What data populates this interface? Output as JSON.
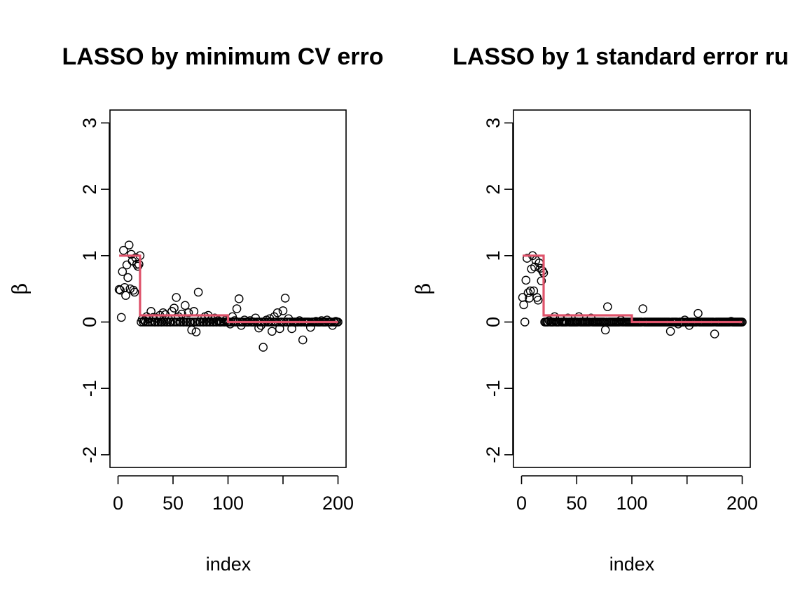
{
  "chart_data": [
    {
      "type": "scatter",
      "title": "LASSO by minimum CV erro",
      "xlabel": "index",
      "ylabel": "β",
      "xlim": [
        0,
        200
      ],
      "ylim": [
        -2,
        3
      ],
      "x_ticks": [
        "0",
        "50",
        "100",
        "200"
      ],
      "x_tick_values": [
        0,
        50,
        100,
        200
      ],
      "y_ticks": [
        "-2",
        "-1",
        "0",
        "1",
        "2",
        "3"
      ],
      "y_tick_values": [
        -2,
        -1,
        0,
        1,
        2,
        3
      ],
      "x_axis_ticks": [
        0,
        50,
        100,
        150,
        200
      ],
      "grid": false,
      "true_beta_color": "#DF536B",
      "true_beta": [
        {
          "from": 1,
          "to": 20,
          "value": 1
        },
        {
          "from": 21,
          "to": 100,
          "value": 0.1
        },
        {
          "from": 101,
          "to": 200,
          "value": 0
        }
      ],
      "points": [
        [
          1,
          0.49
        ],
        [
          2,
          0.48
        ],
        [
          3,
          0.07
        ],
        [
          4,
          0.76
        ],
        [
          5,
          1.08
        ],
        [
          6,
          0.52
        ],
        [
          7,
          0.4
        ],
        [
          8,
          0.86
        ],
        [
          9,
          0.67
        ],
        [
          10,
          1.16
        ],
        [
          11,
          0.5
        ],
        [
          12,
          1.02
        ],
        [
          13,
          0.92
        ],
        [
          14,
          0.48
        ],
        [
          15,
          0.45
        ],
        [
          16,
          0.97
        ],
        [
          17,
          0.87
        ],
        [
          18,
          0.84
        ],
        [
          19,
          0.87
        ],
        [
          20,
          1.0
        ],
        [
          21,
          0.0
        ],
        [
          22,
          0.04
        ],
        [
          24,
          0.02
        ],
        [
          26,
          0.08
        ],
        [
          28,
          0.05
        ],
        [
          30,
          0.16
        ],
        [
          32,
          0.07
        ],
        [
          35,
          0.06
        ],
        [
          38,
          0.1
        ],
        [
          41,
          0.14
        ],
        [
          43,
          0.11
        ],
        [
          46,
          0.04
        ],
        [
          49,
          0.16
        ],
        [
          51,
          0.21
        ],
        [
          53,
          0.37
        ],
        [
          55,
          0.08
        ],
        [
          58,
          0.12
        ],
        [
          61,
          0.25
        ],
        [
          64,
          0.14
        ],
        [
          67,
          -0.12
        ],
        [
          69,
          0.16
        ],
        [
          71,
          -0.15
        ],
        [
          73,
          0.45
        ],
        [
          76,
          0.05
        ],
        [
          79,
          0.08
        ],
        [
          82,
          0.1
        ],
        [
          85,
          0.04
        ],
        [
          88,
          0.06
        ],
        [
          91,
          0.02
        ],
        [
          95,
          0.05
        ],
        [
          98,
          0.03
        ],
        [
          102,
          -0.03
        ],
        [
          104,
          0.08
        ],
        [
          106,
          0.02
        ],
        [
          108,
          0.2
        ],
        [
          110,
          0.35
        ],
        [
          112,
          -0.05
        ],
        [
          115,
          0.03
        ],
        [
          120,
          0.02
        ],
        [
          125,
          0.06
        ],
        [
          128,
          -0.09
        ],
        [
          130,
          -0.05
        ],
        [
          132,
          -0.38
        ],
        [
          135,
          0.03
        ],
        [
          138,
          0.05
        ],
        [
          140,
          -0.14
        ],
        [
          142,
          0.08
        ],
        [
          145,
          0.14
        ],
        [
          147,
          -0.1
        ],
        [
          150,
          0.17
        ],
        [
          152,
          0.36
        ],
        [
          155,
          0.05
        ],
        [
          158,
          -0.1
        ],
        [
          165,
          0.02
        ],
        [
          168,
          -0.27
        ],
        [
          175,
          -0.08
        ],
        [
          180,
          0.01
        ],
        [
          185,
          0.02
        ],
        [
          190,
          0.03
        ],
        [
          195,
          -0.05
        ],
        [
          198,
          0.01
        ],
        [
          200,
          0.0
        ]
      ],
      "zero_points_x": [
        23,
        25,
        27,
        29,
        31,
        33,
        34,
        36,
        37,
        39,
        40,
        42,
        44,
        45,
        47,
        48,
        50,
        52,
        54,
        56,
        57,
        59,
        60,
        62,
        63,
        65,
        66,
        68,
        70,
        72,
        74,
        75,
        77,
        78,
        80,
        81,
        83,
        84,
        86,
        87,
        89,
        90,
        92,
        93,
        94,
        96,
        97,
        99,
        100,
        101,
        103,
        105,
        107,
        109,
        111,
        113,
        114,
        116,
        117,
        118,
        119,
        121,
        122,
        123,
        124,
        126,
        127,
        129,
        131,
        133,
        134,
        136,
        137,
        139,
        141,
        143,
        144,
        146,
        148,
        149,
        151,
        153,
        154,
        156,
        157,
        159,
        160,
        161,
        162,
        163,
        164,
        166,
        167,
        169,
        170,
        171,
        172,
        173,
        174,
        176,
        177,
        178,
        179,
        181,
        182,
        183,
        184,
        186,
        187,
        188,
        189,
        191,
        192,
        193,
        194,
        196,
        197,
        199
      ]
    },
    {
      "type": "scatter",
      "title": "LASSO by 1 standard error ru",
      "xlabel": "index",
      "ylabel": "β",
      "xlim": [
        0,
        200
      ],
      "ylim": [
        -2,
        3
      ],
      "x_ticks": [
        "0",
        "50",
        "100",
        "200"
      ],
      "x_tick_values": [
        0,
        50,
        100,
        200
      ],
      "y_ticks": [
        "-2",
        "-1",
        "0",
        "1",
        "2",
        "3"
      ],
      "y_tick_values": [
        -2,
        -1,
        0,
        1,
        2,
        3
      ],
      "x_axis_ticks": [
        0,
        50,
        100,
        150,
        200
      ],
      "grid": false,
      "true_beta_color": "#DF536B",
      "true_beta": [
        {
          "from": 1,
          "to": 20,
          "value": 1
        },
        {
          "from": 21,
          "to": 100,
          "value": 0.1
        },
        {
          "from": 101,
          "to": 200,
          "value": 0
        }
      ],
      "points": [
        [
          1,
          0.37
        ],
        [
          2,
          0.26
        ],
        [
          3,
          0.0
        ],
        [
          4,
          0.63
        ],
        [
          5,
          0.96
        ],
        [
          6,
          0.44
        ],
        [
          7,
          0.36
        ],
        [
          8,
          0.47
        ],
        [
          9,
          0.8
        ],
        [
          10,
          1.0
        ],
        [
          11,
          0.47
        ],
        [
          12,
          0.83
        ],
        [
          13,
          0.93
        ],
        [
          14,
          0.37
        ],
        [
          15,
          0.33
        ],
        [
          16,
          0.89
        ],
        [
          17,
          0.81
        ],
        [
          18,
          0.62
        ],
        [
          19,
          0.77
        ],
        [
          20,
          0.74
        ],
        [
          21,
          0.0
        ],
        [
          25,
          0.02
        ],
        [
          30,
          0.08
        ],
        [
          35,
          0.05
        ],
        [
          42,
          0.06
        ],
        [
          52,
          0.08
        ],
        [
          63,
          0.06
        ],
        [
          76,
          -0.12
        ],
        [
          78,
          0.23
        ],
        [
          90,
          0.03
        ],
        [
          110,
          0.2
        ],
        [
          135,
          -0.14
        ],
        [
          142,
          -0.03
        ],
        [
          148,
          0.03
        ],
        [
          152,
          -0.05
        ],
        [
          160,
          0.13
        ],
        [
          175,
          -0.18
        ],
        [
          190,
          0.01
        ],
        [
          200,
          0.0
        ]
      ],
      "zero_points_x": [
        22,
        23,
        24,
        26,
        27,
        28,
        29,
        31,
        32,
        33,
        34,
        36,
        37,
        38,
        39,
        40,
        41,
        43,
        44,
        45,
        46,
        47,
        48,
        49,
        50,
        51,
        53,
        54,
        55,
        56,
        57,
        58,
        59,
        60,
        61,
        62,
        64,
        65,
        66,
        67,
        68,
        69,
        70,
        71,
        72,
        73,
        74,
        75,
        77,
        79,
        80,
        81,
        82,
        83,
        84,
        85,
        86,
        87,
        88,
        89,
        91,
        92,
        93,
        94,
        95,
        96,
        97,
        98,
        99,
        100,
        101,
        102,
        103,
        104,
        105,
        106,
        107,
        108,
        109,
        111,
        112,
        113,
        114,
        115,
        116,
        117,
        118,
        119,
        120,
        121,
        122,
        123,
        124,
        125,
        126,
        127,
        128,
        129,
        130,
        131,
        132,
        133,
        134,
        136,
        137,
        138,
        139,
        140,
        141,
        143,
        144,
        145,
        146,
        147,
        149,
        150,
        151,
        153,
        154,
        155,
        156,
        157,
        158,
        159,
        161,
        162,
        163,
        164,
        165,
        166,
        167,
        168,
        169,
        170,
        171,
        172,
        173,
        174,
        176,
        177,
        178,
        179,
        180,
        181,
        182,
        183,
        184,
        185,
        186,
        187,
        188,
        189,
        191,
        192,
        193,
        194,
        195,
        196,
        197,
        198,
        199
      ]
    }
  ]
}
